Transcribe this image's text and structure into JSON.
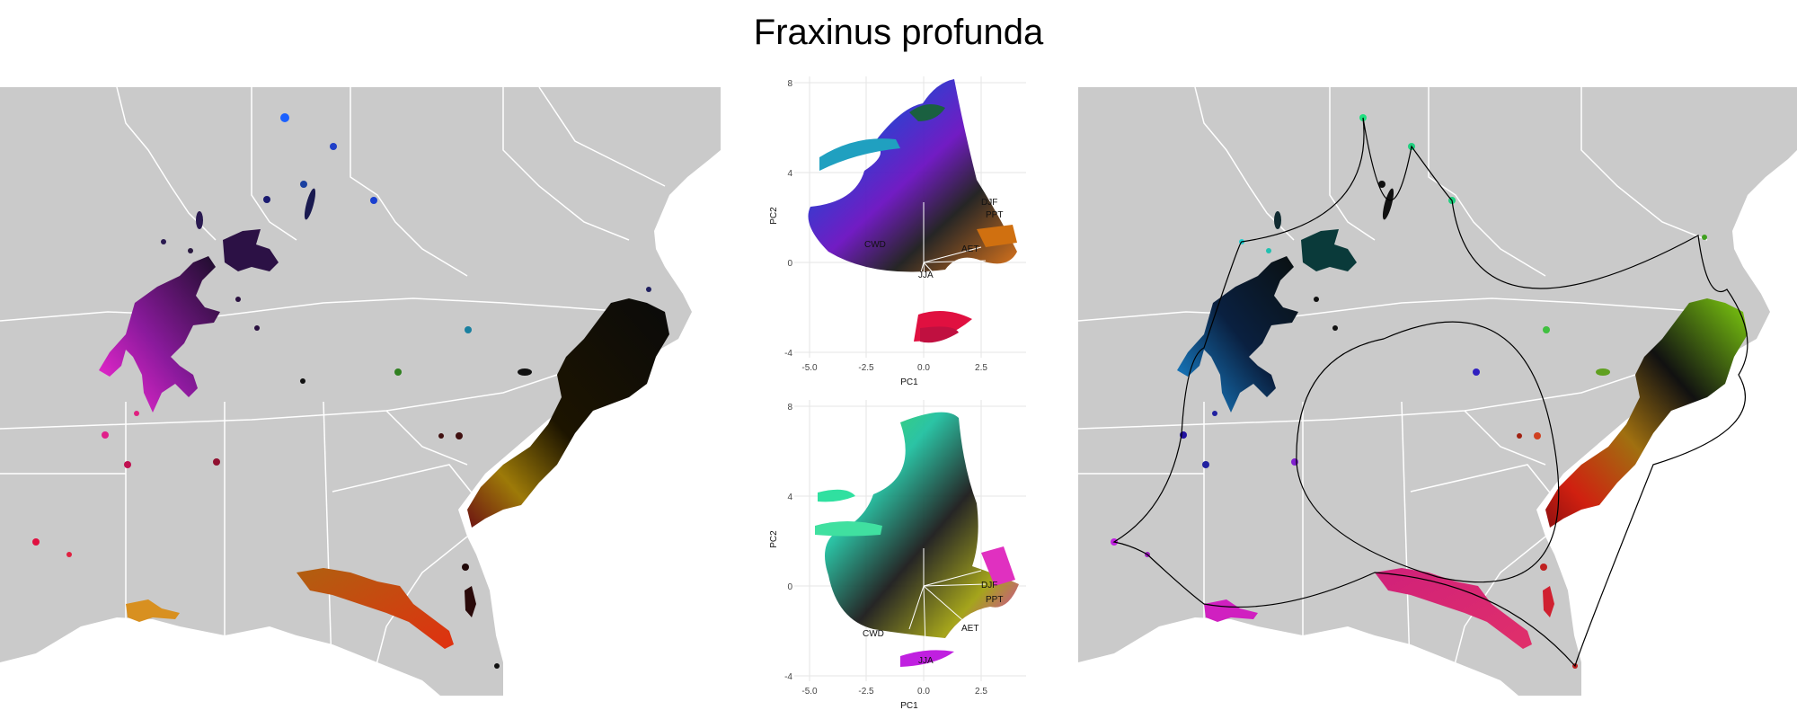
{
  "title": "Fraxinus profunda",
  "colors": {
    "land": "#cacaca",
    "border": "#ffffff",
    "background": "#ffffff",
    "grid": "#e4e4e4",
    "hull": "#000000"
  },
  "pca_plots": [
    {
      "xlabel": "PC1",
      "ylabel": "PC2",
      "x_ticks": [
        "-5.0",
        "-2.5",
        "0.0",
        "2.5"
      ],
      "y_ticks": [
        "-4",
        "0",
        "4",
        "8"
      ],
      "vectors": [
        "DJF",
        "PPT",
        "AET",
        "CWD",
        "JJA"
      ]
    },
    {
      "xlabel": "PC1",
      "ylabel": "PC2",
      "x_ticks": [
        "-5.0",
        "-2.5",
        "0.0",
        "2.5"
      ],
      "y_ticks": [
        "-4",
        "0",
        "4",
        "8"
      ],
      "vectors": [
        "DJF",
        "PPT",
        "AET",
        "CWD",
        "JJA"
      ]
    }
  ]
}
